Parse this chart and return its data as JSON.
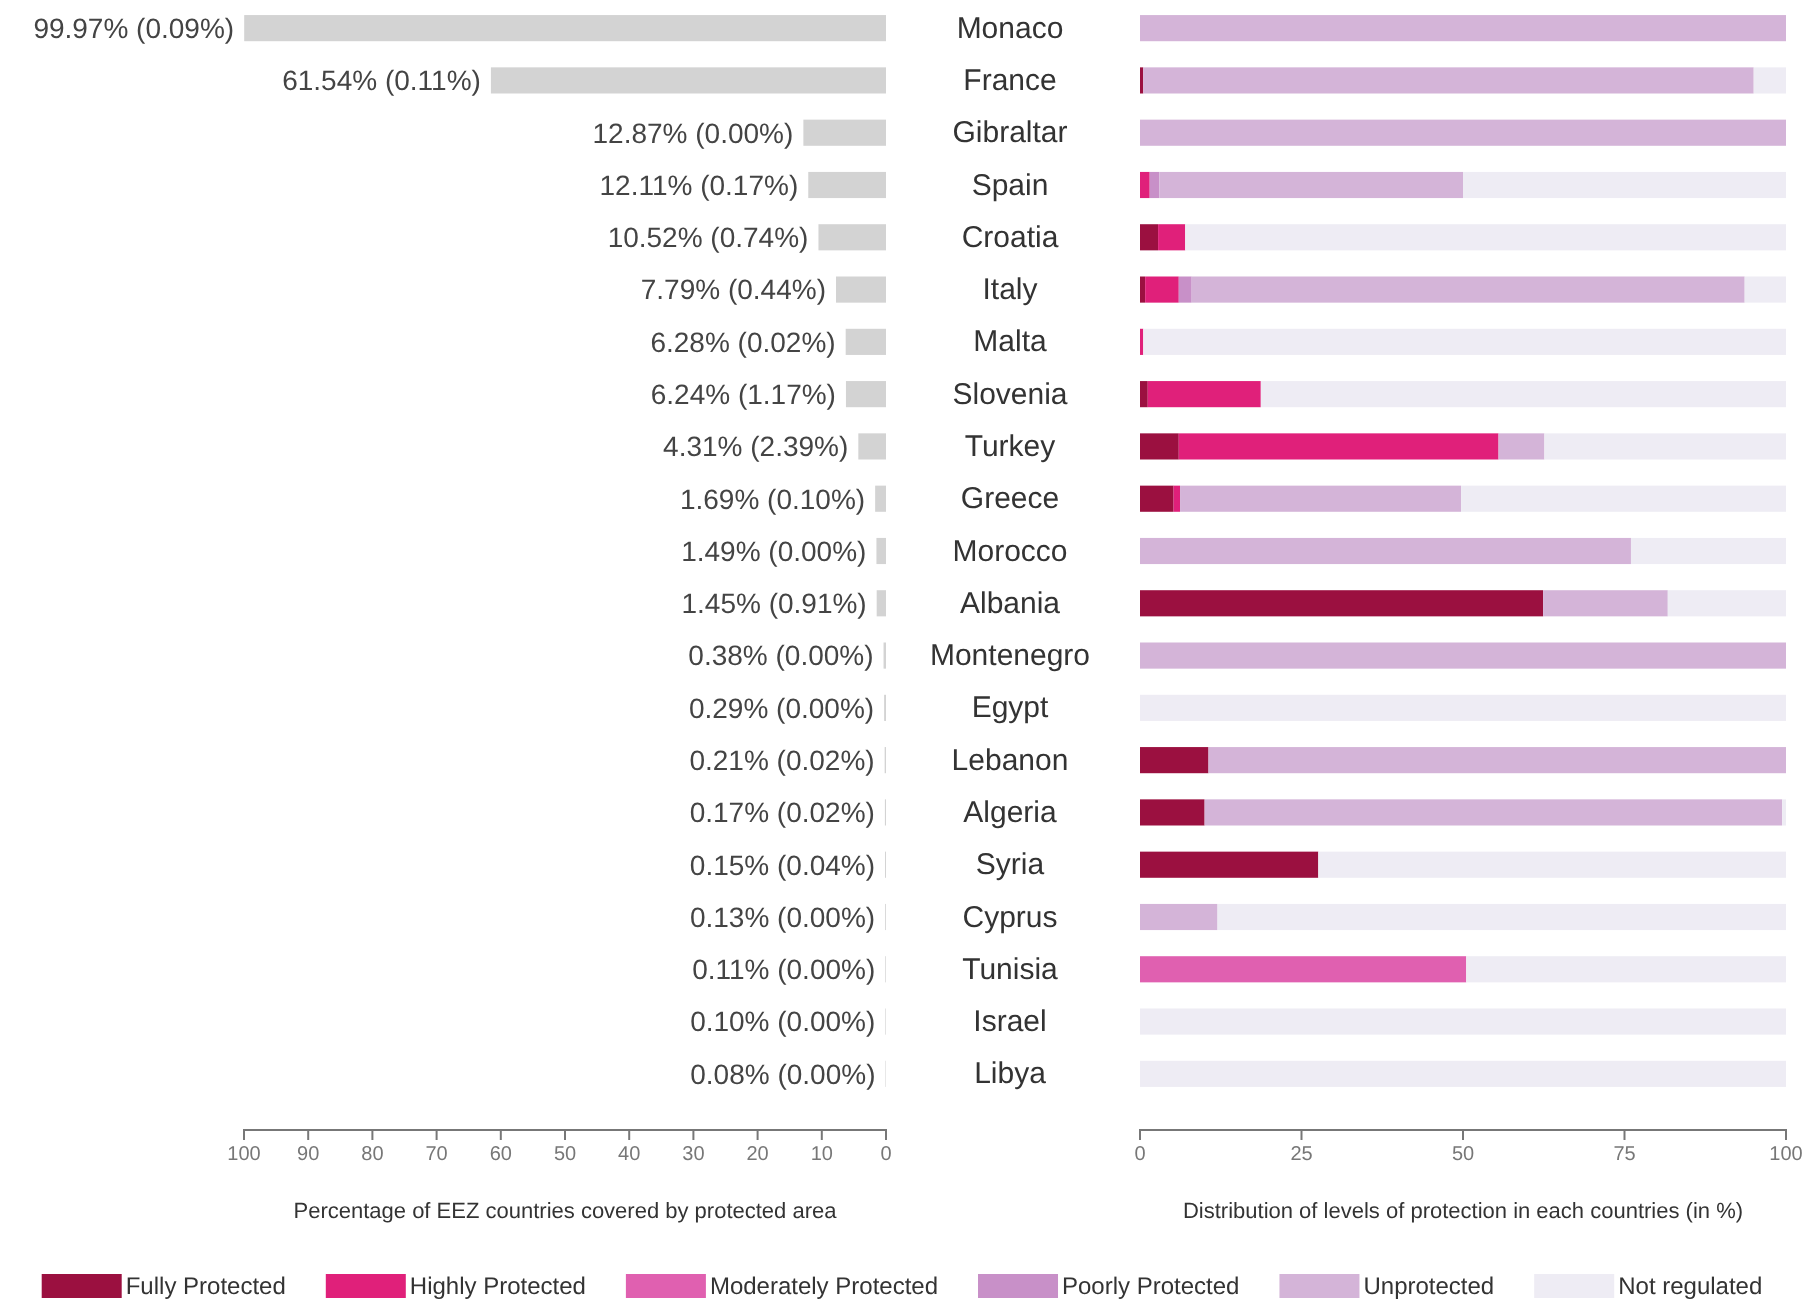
{
  "chart_data": [
    {
      "type": "bar",
      "orientation": "horizontal",
      "categories": [
        "Monaco",
        "France",
        "Gibraltar",
        "Spain",
        "Croatia",
        "Italy",
        "Malta",
        "Slovenia",
        "Turkey",
        "Greece",
        "Morocco",
        "Albania",
        "Montenegro",
        "Egypt",
        "Lebanon",
        "Algeria",
        "Syria",
        "Cyprus",
        "Tunisia",
        "Israel",
        "Libya"
      ],
      "values": [
        99.97,
        61.54,
        12.87,
        12.11,
        10.52,
        7.79,
        6.28,
        6.24,
        4.31,
        1.69,
        1.49,
        1.45,
        0.38,
        0.29,
        0.21,
        0.17,
        0.15,
        0.13,
        0.11,
        0.1,
        0.08
      ],
      "value_labels": [
        "99.97% (0.09%)",
        "61.54% (0.11%)",
        "12.87% (0.00%)",
        "12.11% (0.17%)",
        "10.52% (0.74%)",
        "7.79% (0.44%)",
        "6.28% (0.02%)",
        "6.24% (1.17%)",
        "4.31% (2.39%)",
        "1.69% (0.10%)",
        "1.49% (0.00%)",
        "1.45% (0.91%)",
        "0.38% (0.00%)",
        "0.29% (0.00%)",
        "0.21% (0.02%)",
        "0.17% (0.02%)",
        "0.15% (0.04%)",
        "0.13% (0.00%)",
        "0.11% (0.00%)",
        "0.10% (0.00%)",
        "0.08% (0.00%)"
      ],
      "color": "#d3d3d3",
      "xlim": [
        100,
        0
      ],
      "xticks": [
        100,
        90,
        80,
        70,
        60,
        50,
        40,
        30,
        20,
        10,
        0
      ],
      "xlabel": "Percentage of EEZ countries covered by protected area",
      "grid": false,
      "legend": false
    },
    {
      "type": "bar",
      "orientation": "horizontal",
      "stacked": true,
      "categories": [
        null,
        null,
        null,
        null,
        null,
        null,
        null,
        null,
        null,
        null,
        null,
        null,
        null,
        null,
        null,
        null,
        null,
        null,
        null,
        null,
        null
      ],
      "series": [
        {
          "name": "Fully Protected",
          "color": "#9b1040",
          "values": [
            0,
            0.5,
            0,
            0,
            2.8,
            0.8,
            0,
            1.2,
            6,
            5.2,
            0,
            62.4,
            0,
            0,
            10.6,
            10,
            27.6,
            0,
            0,
            0,
            0
          ]
        },
        {
          "name": "Highly Protected",
          "color": "#e0207a",
          "values": [
            0,
            0,
            0,
            1.5,
            4.2,
            5.2,
            0.5,
            17.5,
            49.5,
            1,
            0,
            0,
            0,
            0,
            0,
            0,
            0,
            0,
            0,
            0,
            0
          ]
        },
        {
          "name": "Moderately Protected",
          "color": "#e060b0",
          "values": [
            0,
            0,
            0,
            0,
            0,
            0,
            0,
            0,
            0,
            0,
            0,
            0,
            0,
            0,
            0,
            0,
            0,
            0,
            50.5,
            0,
            0
          ]
        },
        {
          "name": "Poorly Protected",
          "color": "#c890c8",
          "values": [
            0,
            0,
            0,
            1.5,
            0,
            2,
            0,
            0,
            0,
            0,
            0,
            0,
            0,
            0,
            0,
            0,
            0,
            0,
            0,
            0,
            0
          ]
        },
        {
          "name": "Unprotected",
          "color": "#d4b4d8",
          "values": [
            100,
            94.5,
            100,
            47,
            0,
            85.6,
            0,
            0,
            7.1,
            43.5,
            76,
            19.3,
            100,
            0,
            89.4,
            89.4,
            0,
            12,
            0,
            0,
            0
          ]
        },
        {
          "name": "Not regulated",
          "color": "#eeecf4",
          "values": [
            0,
            5,
            0,
            50,
            93,
            6.4,
            99.5,
            81.3,
            37.4,
            50.3,
            24,
            18.3,
            0,
            100,
            0,
            0.6,
            72.4,
            88,
            49.5,
            100,
            100
          ]
        }
      ],
      "xlim": [
        0,
        100
      ],
      "xticks": [
        0,
        25,
        50,
        75,
        100
      ],
      "tick_labels": "x",
      "xlabel": "Distribution of levels of protection in each countries (in %)",
      "grid": false,
      "legend": "bottom"
    }
  ]
}
